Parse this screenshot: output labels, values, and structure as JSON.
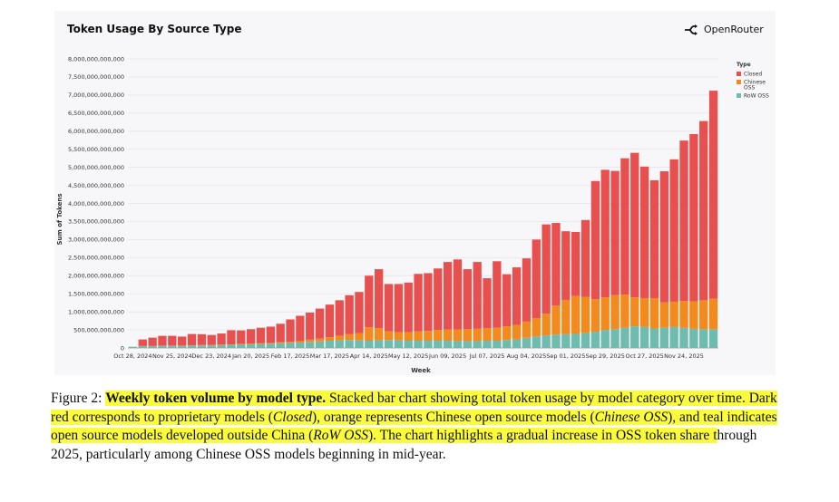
{
  "chart_data": {
    "type": "bar",
    "stacked": true,
    "title": "Token Usage By Source Type",
    "brand": "OpenRouter",
    "xlabel": "Week",
    "ylabel": "Sum of Tokens",
    "ylim": [
      0,
      8000000000000
    ],
    "y_ticks": [
      0,
      500000000000,
      1000000000000,
      1500000000000,
      2000000000000,
      2500000000000,
      3000000000000,
      3500000000000,
      4000000000000,
      4500000000000,
      5000000000000,
      5500000000000,
      6000000000000,
      6500000000000,
      7000000000000,
      7500000000000,
      8000000000000
    ],
    "y_tick_labels": [
      "0",
      "500,000,000,000",
      "1,000,000,000,000",
      "1,500,000,000,000",
      "2,000,000,000,000",
      "2,500,000,000,000",
      "3,000,000,000,000",
      "3,500,000,000,000",
      "4,000,000,000,000",
      "4,500,000,000,000",
      "5,000,000,000,000",
      "5,500,000,000,000",
      "6,000,000,000,000",
      "6,500,000,000,000",
      "7,000,000,000,000",
      "7,500,000,000,000",
      "8,000,000,000,000"
    ],
    "x_tick_labels": [
      "Oct 28, 2024",
      "Nov 25, 2024",
      "Dec 23, 2024",
      "Jan 20, 2025",
      "Feb 17, 2025",
      "Mar 17, 2025",
      "Apr 14, 2025",
      "May 12, 2025",
      "Jun 09, 2025",
      "Jul 07, 2025",
      "Aug 04, 2025",
      "Sep 01, 2025",
      "Sep 29, 2025",
      "Oct 27, 2025",
      "Nov 24, 2025"
    ],
    "x_tick_every": 4,
    "legend_title": "Type",
    "legend_position": "top-right",
    "series": [
      {
        "name": "RoW OSS",
        "color": "#6fbcae",
        "values": [
          30,
          50,
          50,
          60,
          60,
          60,
          70,
          70,
          70,
          80,
          90,
          100,
          100,
          110,
          120,
          130,
          140,
          150,
          170,
          180,
          200,
          210,
          220,
          210,
          200,
          210,
          220,
          210,
          200,
          200,
          200,
          200,
          200,
          190,
          190,
          190,
          200,
          200,
          220,
          240,
          280,
          320,
          350,
          370,
          380,
          390,
          410,
          450,
          500,
          520,
          560,
          600,
          580,
          540,
          560,
          580,
          560,
          530,
          520,
          520
        ]
      },
      {
        "name": "Chinese OSS",
        "color": "#f28a1e",
        "values": [
          5,
          5,
          5,
          5,
          5,
          5,
          5,
          10,
          10,
          10,
          10,
          15,
          20,
          20,
          20,
          30,
          30,
          40,
          60,
          80,
          100,
          130,
          160,
          200,
          370,
          340,
          240,
          230,
          240,
          260,
          270,
          300,
          310,
          320,
          330,
          340,
          350,
          360,
          380,
          400,
          450,
          500,
          600,
          800,
          950,
          1050,
          1000,
          900,
          900,
          940,
          920,
          800,
          800,
          840,
          700,
          700,
          740,
          760,
          800,
          840
        ]
      },
      {
        "name": "Closed",
        "color": "#e8504f",
        "values": [
          0,
          180,
          230,
          270,
          270,
          250,
          310,
          300,
          280,
          310,
          390,
          370,
          400,
          430,
          450,
          510,
          620,
          700,
          750,
          830,
          900,
          980,
          1080,
          1140,
          1430,
          1630,
          1310,
          1330,
          1370,
          1590,
          1600,
          1700,
          1870,
          1940,
          1660,
          1850,
          1380,
          1840,
          1440,
          1590,
          1750,
          2180,
          2470,
          2290,
          1900,
          1770,
          2130,
          3270,
          3530,
          3440,
          3770,
          4000,
          3640,
          3260,
          3630,
          3940,
          4440,
          4630,
          4960,
          5760
        ]
      }
    ]
  },
  "caption": {
    "prefix": "Figure 2: ",
    "title": "Weekly token volume by model type.",
    "s1": " Stacked bar chart showing total token usage by model category over time. Dark red corresponds to proprietary models (",
    "closed": "Closed",
    "s2": "), orange represents Chinese open source models (",
    "chinese": "Chinese OSS",
    "s3": "), and teal indicates open source models developed outside China (",
    "row": "RoW OSS",
    "s4": "). The chart highlights a gradual increase in OSS token share t",
    "s5": "hrough 2025, particularly among Chinese OSS models beginning in mid-year."
  }
}
